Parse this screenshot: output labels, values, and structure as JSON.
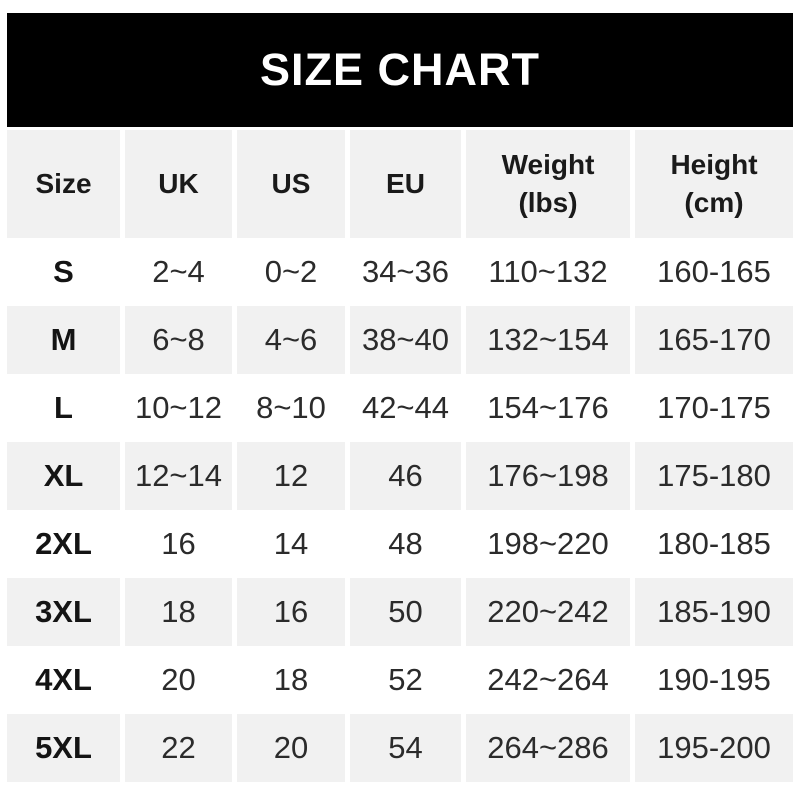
{
  "banner": {
    "bg_color": "#000000",
    "text_color": "#ffffff"
  },
  "table_style": {
    "row_alt_color": "#f1f1f1",
    "row_color": "#ffffff",
    "text_color": "#2b2b2b"
  },
  "chart_data": {
    "type": "table",
    "title": "SIZE CHART",
    "columns": [
      "Size",
      "UK",
      "US",
      "EU",
      "Weight\n(lbs)",
      "Height\n(cm)"
    ],
    "rows": [
      {
        "size": "S",
        "uk": "2~4",
        "us": "0~2",
        "eu": "34~36",
        "weight_lbs": "110~132",
        "height_cm": "160-165"
      },
      {
        "size": "M",
        "uk": "6~8",
        "us": "4~6",
        "eu": "38~40",
        "weight_lbs": "132~154",
        "height_cm": "165-170"
      },
      {
        "size": "L",
        "uk": "10~12",
        "us": "8~10",
        "eu": "42~44",
        "weight_lbs": "154~176",
        "height_cm": "170-175"
      },
      {
        "size": "XL",
        "uk": "12~14",
        "us": "12",
        "eu": "46",
        "weight_lbs": "176~198",
        "height_cm": "175-180"
      },
      {
        "size": "2XL",
        "uk": "16",
        "us": "14",
        "eu": "48",
        "weight_lbs": "198~220",
        "height_cm": "180-185"
      },
      {
        "size": "3XL",
        "uk": "18",
        "us": "16",
        "eu": "50",
        "weight_lbs": "220~242",
        "height_cm": "185-190"
      },
      {
        "size": "4XL",
        "uk": "20",
        "us": "18",
        "eu": "52",
        "weight_lbs": "242~264",
        "height_cm": "190-195"
      },
      {
        "size": "5XL",
        "uk": "22",
        "us": "20",
        "eu": "54",
        "weight_lbs": "264~286",
        "height_cm": "195-200"
      }
    ]
  }
}
